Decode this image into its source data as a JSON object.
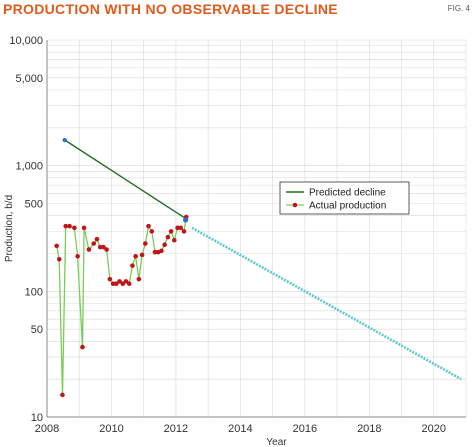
{
  "header": {
    "title": "PRODUCTION WITH NO OBSERVABLE DECLINE",
    "fig_label": "FIG. 4"
  },
  "chart_data": {
    "type": "line",
    "title": "PRODUCTION WITH NO OBSERVABLE DECLINE",
    "xlabel": "Year",
    "ylabel": "Production, b/d",
    "xlim": [
      2008,
      2021
    ],
    "ylim": [
      10,
      10000
    ],
    "yscale": "log",
    "x_ticks": [
      2008,
      2010,
      2012,
      2014,
      2016,
      2018,
      2020
    ],
    "y_ticks": [
      10,
      50,
      100,
      500,
      1000,
      5000,
      10000
    ],
    "y_tick_labels": [
      "10",
      "50",
      "100",
      "500",
      "1,000",
      "5,000",
      "10,000"
    ],
    "grid": true,
    "legend_position": "center-right",
    "colors": {
      "predicted": "#1f6e1f",
      "actual_line": "#7acc55",
      "actual_marker": "#c0151a",
      "forecast": "#5fc8c8",
      "point": "#2b6fd0",
      "grid": "#d9d9d9",
      "title": "#e05a1c"
    },
    "series": [
      {
        "name": "Predicted decline",
        "style": "line",
        "x": [
          2008.55,
          2012.3
        ],
        "y": [
          1600,
          380
        ]
      },
      {
        "name": "Actual production",
        "style": "line-markers",
        "x": [
          2008.3,
          2008.38,
          2008.48,
          2008.58,
          2008.7,
          2008.85,
          2008.95,
          2009.1,
          2009.15,
          2009.3,
          2009.45,
          2009.55,
          2009.65,
          2009.75,
          2009.85,
          2009.95,
          2010.05,
          2010.15,
          2010.25,
          2010.35,
          2010.45,
          2010.55,
          2010.65,
          2010.75,
          2010.85,
          2010.95,
          2011.05,
          2011.15,
          2011.25,
          2011.35,
          2011.45,
          2011.55,
          2011.65,
          2011.75,
          2011.85,
          2011.95,
          2012.05,
          2012.15,
          2012.25,
          2012.32
        ],
        "y": [
          230,
          180,
          15,
          330,
          330,
          320,
          190,
          36,
          320,
          215,
          240,
          260,
          225,
          225,
          215,
          125,
          115,
          115,
          120,
          115,
          120,
          115,
          160,
          190,
          125,
          195,
          240,
          330,
          300,
          205,
          205,
          210,
          235,
          270,
          300,
          255,
          320,
          320,
          300,
          390
        ]
      },
      {
        "name": "Forecast",
        "style": "dotted-line",
        "x": [
          2012.5,
          2020.85
        ],
        "y": [
          320,
          20
        ]
      },
      {
        "name": "Current point",
        "style": "point",
        "x": [
          2012.3
        ],
        "y": [
          370
        ]
      }
    ]
  }
}
